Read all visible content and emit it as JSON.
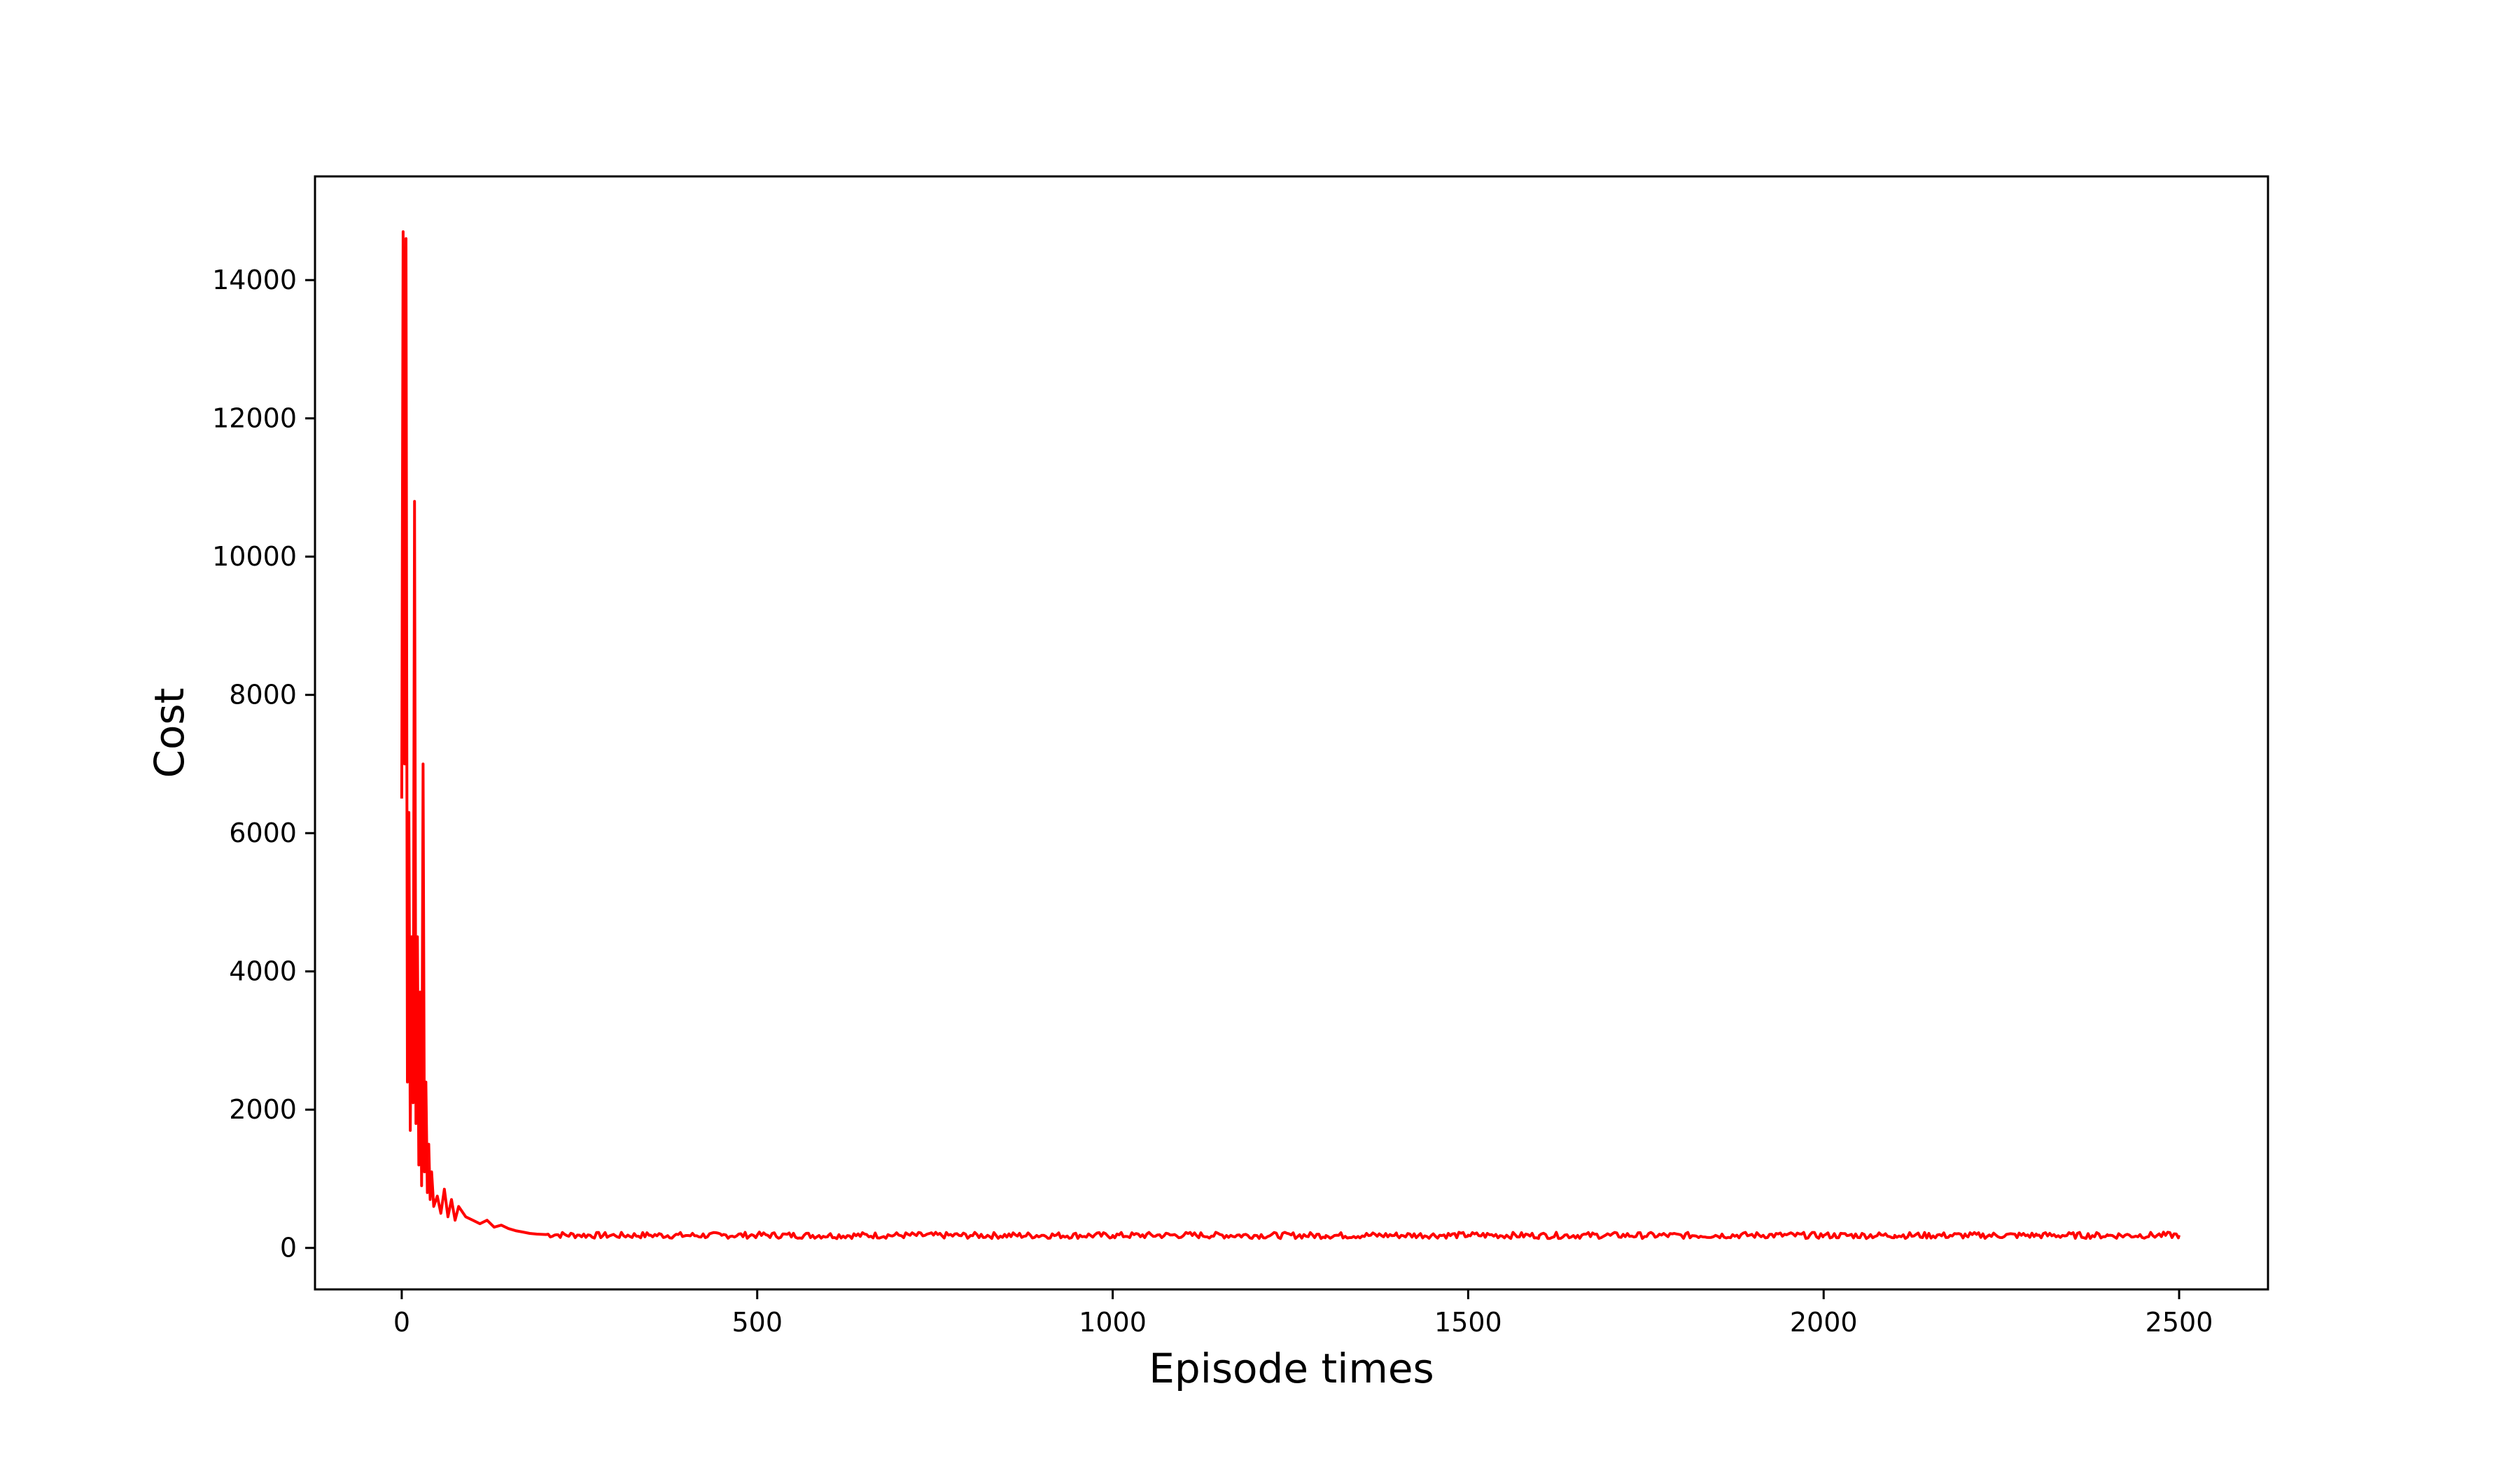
{
  "chart_data": {
    "type": "line",
    "title": "",
    "xlabel": "Episode times",
    "ylabel": "Cost",
    "xlim": [
      -122,
      2625
    ],
    "ylim": [
      -600,
      15500
    ],
    "xticks": [
      0,
      500,
      1000,
      1500,
      2000,
      2500
    ],
    "xtick_labels": [
      "0",
      "500",
      "1000",
      "1500",
      "2000",
      "2500"
    ],
    "yticks": [
      0,
      2000,
      4000,
      6000,
      8000,
      10000,
      12000,
      14000
    ],
    "ytick_labels": [
      "0",
      "2000",
      "4000",
      "6000",
      "8000",
      "10000",
      "12000",
      "14000"
    ],
    "grid": false,
    "legend": "none",
    "line_color": "#ff0000",
    "series": [
      {
        "x": [
          0,
          2,
          4,
          6,
          8,
          10,
          12,
          14,
          16,
          18,
          20,
          22,
          24,
          26,
          28,
          30,
          32,
          34,
          36,
          38,
          40,
          42,
          45,
          50,
          55,
          60,
          65,
          70,
          75,
          80,
          90,
          100,
          110,
          120,
          130,
          140,
          150,
          160,
          170,
          180,
          190,
          200,
          220,
          250,
          300,
          350,
          400,
          450,
          500,
          600,
          700,
          800,
          900,
          1000,
          1100,
          1200,
          1300,
          1400,
          1500,
          1600,
          1700,
          1800,
          1900,
          2000,
          2100,
          2200,
          2300,
          2400,
          2500
        ],
        "y": [
          6500,
          14700,
          7000,
          14600,
          2400,
          6300,
          1700,
          4500,
          2100,
          10800,
          1800,
          4500,
          1200,
          3700,
          900,
          7000,
          1100,
          2400,
          800,
          1500,
          700,
          1100,
          600,
          750,
          500,
          850,
          450,
          700,
          400,
          600,
          450,
          400,
          350,
          400,
          300,
          330,
          280,
          250,
          230,
          210,
          200,
          195,
          190,
          185,
          180,
          185,
          180,
          182,
          185,
          180,
          183,
          180,
          182,
          180,
          185,
          182,
          180,
          183,
          185,
          180,
          182,
          180,
          185,
          180,
          182,
          180,
          183,
          180,
          185
        ]
      }
    ]
  }
}
